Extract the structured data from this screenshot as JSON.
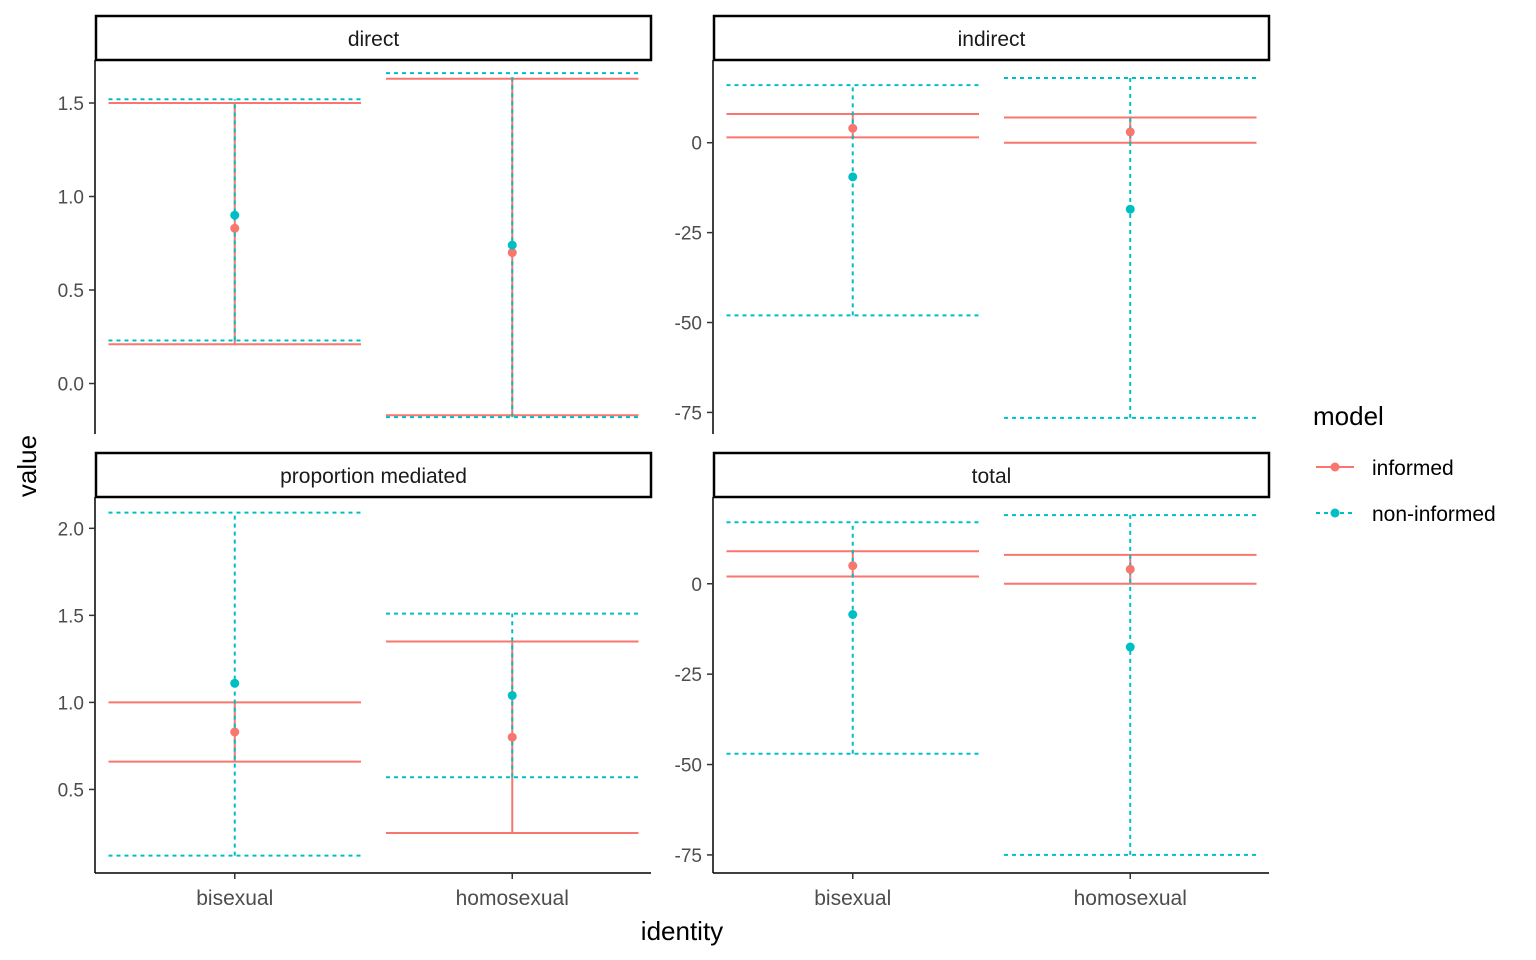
{
  "chart_data": {
    "type": "errorbar",
    "xlabel": "identity",
    "ylabel": "value",
    "legend": {
      "title": "model",
      "position": "right",
      "entries": [
        {
          "name": "informed",
          "color": "#F8766D",
          "linestyle": "solid"
        },
        {
          "name": "non-informed",
          "color": "#00BFC4",
          "linestyle": "dotted"
        }
      ]
    },
    "categories": [
      "bisexual",
      "homosexual"
    ],
    "panels": [
      {
        "title": "direct",
        "ylim": [
          -0.27,
          1.73
        ],
        "yticks": [
          "0.0",
          "0.5",
          "1.0",
          "1.5"
        ],
        "series": [
          {
            "name": "informed",
            "points": [
              {
                "x": "bisexual",
                "y": 0.83,
                "lower": 0.21,
                "upper": 1.5
              },
              {
                "x": "homosexual",
                "y": 0.7,
                "lower": -0.17,
                "upper": 1.63
              }
            ]
          },
          {
            "name": "non-informed",
            "points": [
              {
                "x": "bisexual",
                "y": 0.9,
                "lower": 0.23,
                "upper": 1.52
              },
              {
                "x": "homosexual",
                "y": 0.74,
                "lower": -0.18,
                "upper": 1.66
              }
            ]
          }
        ]
      },
      {
        "title": "indirect",
        "ylim": [
          -81,
          23
        ],
        "yticks": [
          "-75",
          "-50",
          "-25",
          "0"
        ],
        "series": [
          {
            "name": "informed",
            "points": [
              {
                "x": "bisexual",
                "y": 4,
                "lower": 1.5,
                "upper": 8
              },
              {
                "x": "homosexual",
                "y": 3,
                "lower": 0,
                "upper": 7
              }
            ]
          },
          {
            "name": "non-informed",
            "points": [
              {
                "x": "bisexual",
                "y": -9.5,
                "lower": -48,
                "upper": 16
              },
              {
                "x": "homosexual",
                "y": -18.5,
                "lower": -76.5,
                "upper": 18
              }
            ]
          }
        ]
      },
      {
        "title": "proportion mediated",
        "ylim": [
          0.02,
          2.18
        ],
        "yticks": [
          "0.5",
          "1.0",
          "1.5",
          "2.0"
        ],
        "series": [
          {
            "name": "informed",
            "points": [
              {
                "x": "bisexual",
                "y": 0.83,
                "lower": 0.66,
                "upper": 1.0
              },
              {
                "x": "homosexual",
                "y": 0.8,
                "lower": 0.25,
                "upper": 1.35
              }
            ]
          },
          {
            "name": "non-informed",
            "points": [
              {
                "x": "bisexual",
                "y": 1.11,
                "lower": 0.12,
                "upper": 2.09
              },
              {
                "x": "homosexual",
                "y": 1.04,
                "lower": 0.57,
                "upper": 1.51
              }
            ]
          }
        ]
      },
      {
        "title": "total",
        "ylim": [
          -80,
          24
        ],
        "yticks": [
          "-75",
          "-50",
          "-25",
          "0"
        ],
        "series": [
          {
            "name": "informed",
            "points": [
              {
                "x": "bisexual",
                "y": 5,
                "lower": 2,
                "upper": 9
              },
              {
                "x": "homosexual",
                "y": 4,
                "lower": 0,
                "upper": 8
              }
            ]
          },
          {
            "name": "non-informed",
            "points": [
              {
                "x": "bisexual",
                "y": -8.5,
                "lower": -47,
                "upper": 17
              },
              {
                "x": "homosexual",
                "y": -17.5,
                "lower": -75,
                "upper": 19
              }
            ]
          }
        ]
      }
    ]
  }
}
